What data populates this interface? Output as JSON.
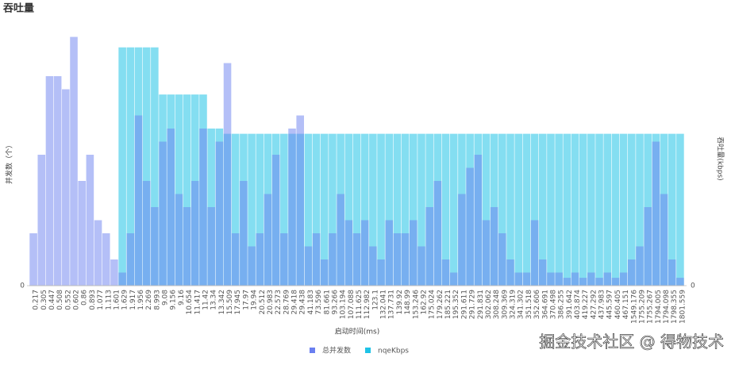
{
  "chart_data": {
    "type": "bar",
    "title": "吞吐量",
    "y_label": "并发数（个）",
    "y2_label": "吞吐量(kbps)",
    "x_label": "启动时间(ms)",
    "watermark": "掘金技术社区 @ 得物技术",
    "categories": [
      "0.217",
      "0.305",
      "0.447",
      "0.508",
      "0.552",
      "0.602",
      "0.86",
      "0.893",
      "1.077",
      "1.113",
      "1.601",
      "1.629",
      "1.917",
      "1.956",
      "2.269",
      "8.993",
      "9.08",
      "9.156",
      "9.16",
      "10.654",
      "11.417",
      "11.42",
      "13.34",
      "13.342",
      "15.509",
      "17.945",
      "17.97",
      "19.94",
      "20.512",
      "20.983",
      "22.573",
      "28.769",
      "29.418",
      "29.438",
      "41.183",
      "73.596",
      "81.661",
      "93.266",
      "103.194",
      "107.088",
      "111.625",
      "112.982",
      "123.1",
      "132.041",
      "137.731",
      "139.92",
      "148.99",
      "153.246",
      "162.92",
      "175.024",
      "179.262",
      "185.221",
      "195.352",
      "291.611",
      "291.729",
      "291.831",
      "302.062",
      "308.248",
      "309.369",
      "324.319",
      "341.302",
      "351.518",
      "352.606",
      "364.691",
      "370.498",
      "386.255",
      "391.642",
      "403.874",
      "419.227",
      "427.292",
      "437.983",
      "445.597",
      "460.405",
      "467.151",
      "1549.176",
      "1755.209",
      "1755.267",
      "1794.005",
      "1794.098",
      "1798.355",
      "1801.559"
    ],
    "series": [
      {
        "name": "nqeKbps",
        "color": "#1fc3e6",
        "axis": "y2",
        "values": [
          0,
          0,
          0,
          0,
          0,
          0,
          0,
          0,
          0,
          0,
          0,
          91,
          91,
          91,
          91,
          91,
          73,
          73,
          73,
          73,
          73,
          73,
          60,
          60,
          58,
          58,
          58,
          58,
          58,
          58,
          58,
          58,
          58,
          58,
          58,
          58,
          58,
          58,
          58,
          58,
          58,
          58,
          58,
          58,
          58,
          58,
          58,
          58,
          58,
          58,
          58,
          58,
          58,
          58,
          58,
          58,
          58,
          58,
          58,
          58,
          58,
          58,
          58,
          58,
          58,
          58,
          58,
          58,
          58,
          58,
          58,
          58,
          58,
          58,
          58,
          58,
          58,
          58,
          58,
          58,
          58
        ]
      },
      {
        "name": "总并发数",
        "color": "#6a7ff0",
        "values": [
          20,
          50,
          80,
          80,
          75,
          95,
          40,
          50,
          25,
          20,
          10,
          5,
          20,
          65,
          40,
          30,
          55,
          60,
          35,
          30,
          40,
          60,
          30,
          55,
          85,
          20,
          40,
          15,
          20,
          35,
          50,
          20,
          60,
          65,
          15,
          20,
          10,
          20,
          35,
          25,
          20,
          25,
          15,
          10,
          25,
          20,
          20,
          25,
          15,
          30,
          40,
          10,
          5,
          35,
          45,
          50,
          25,
          30,
          20,
          10,
          5,
          5,
          25,
          10,
          5,
          5,
          3,
          5,
          3,
          5,
          3,
          5,
          3,
          5,
          10,
          15,
          30,
          55,
          35,
          10,
          3
        ]
      }
    ],
    "ylim": [
      0,
      100
    ],
    "yticks": [
      0
    ],
    "y2lim": [
      0,
      100
    ],
    "y2ticks": [
      0
    ],
    "legend": "bottom"
  }
}
